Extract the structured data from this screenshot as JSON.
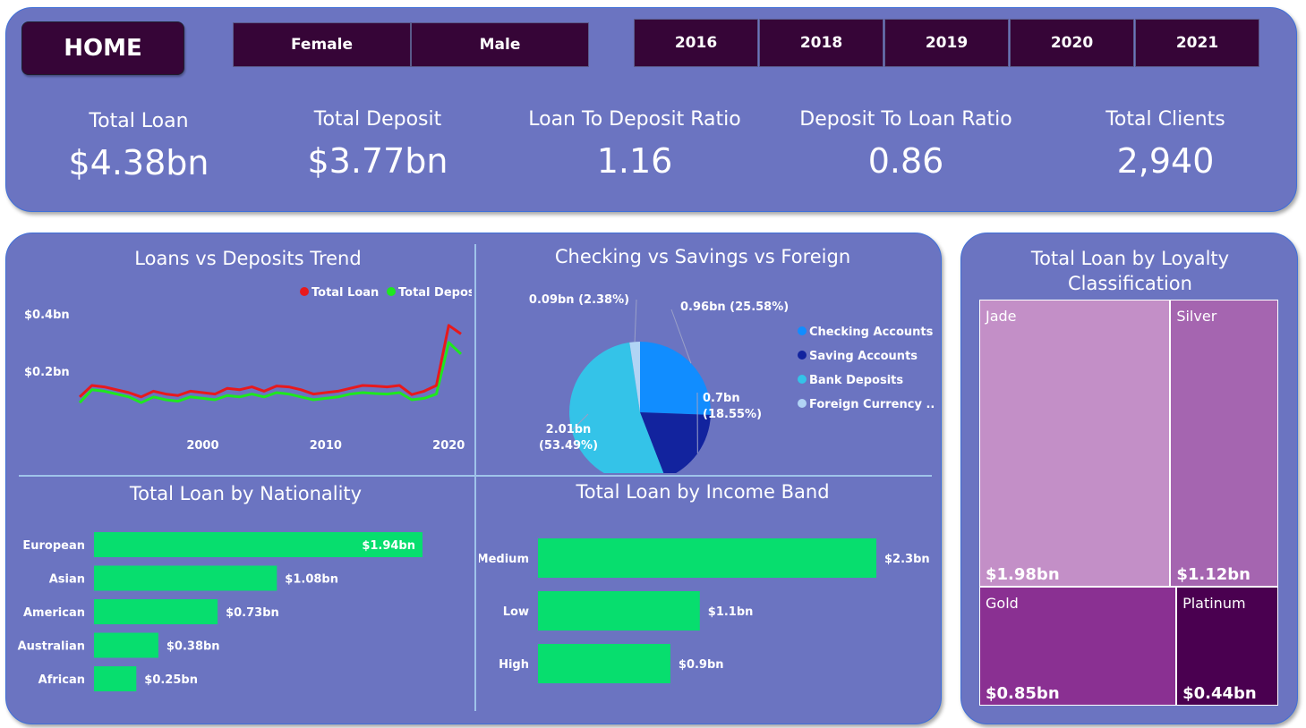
{
  "header": {
    "home_label": "HOME",
    "gender_slicer": [
      "Female",
      "Male"
    ],
    "year_slicer": [
      "2016",
      "2018",
      "2019",
      "2020",
      "2021"
    ]
  },
  "kpis": [
    {
      "label": "Total Loan",
      "value": "$4.38bn"
    },
    {
      "label": "Total Deposit",
      "value": "$3.77bn"
    },
    {
      "label": "Loan To Deposit Ratio",
      "value": "1.16"
    },
    {
      "label": "Deposit To Loan Ratio",
      "value": "0.86"
    },
    {
      "label": "Total Clients",
      "value": "2,940"
    }
  ],
  "colors": {
    "panel": "#6b74c1",
    "slicer": "#360537",
    "loan_line": "#e8191c",
    "deposit_line": "#1ee81e",
    "bar": "#07de6e"
  },
  "chart_data": [
    {
      "type": "line",
      "title": "Loans vs Deposits Trend",
      "x": [
        1990,
        1991,
        1992,
        1993,
        1994,
        1995,
        1996,
        1997,
        1998,
        1999,
        2000,
        2001,
        2002,
        2003,
        2004,
        2005,
        2006,
        2007,
        2008,
        2009,
        2010,
        2011,
        2012,
        2013,
        2014,
        2015,
        2016,
        2017,
        2018,
        2019,
        2020,
        2021
      ],
      "x_ticks": [
        "2000",
        "2010",
        "2020"
      ],
      "y_ticks": [
        "$0.2bn",
        "$0.4bn"
      ],
      "ylim": [
        0,
        0.5
      ],
      "legend": "top-right",
      "series": [
        {
          "name": "Total Loan",
          "color": "#e8191c",
          "values": [
            0.11,
            0.15,
            0.145,
            0.135,
            0.125,
            0.11,
            0.13,
            0.12,
            0.115,
            0.13,
            0.125,
            0.12,
            0.14,
            0.135,
            0.145,
            0.13,
            0.148,
            0.145,
            0.135,
            0.12,
            0.125,
            0.13,
            0.14,
            0.15,
            0.148,
            0.145,
            0.15,
            0.118,
            0.13,
            0.15,
            0.36,
            0.33
          ]
        },
        {
          "name": "Total Deposit",
          "color": "#1ee81e",
          "values": [
            0.09,
            0.135,
            0.13,
            0.12,
            0.11,
            0.09,
            0.11,
            0.1,
            0.095,
            0.11,
            0.105,
            0.1,
            0.115,
            0.11,
            0.12,
            0.11,
            0.125,
            0.12,
            0.11,
            0.1,
            0.105,
            0.11,
            0.12,
            0.125,
            0.122,
            0.12,
            0.125,
            0.1,
            0.105,
            0.12,
            0.3,
            0.26
          ]
        }
      ]
    },
    {
      "type": "pie",
      "title": "Checking vs Savings vs Foreign",
      "slices": [
        {
          "name": "Checking Accounts",
          "value": 0.96,
          "pct": 25.58,
          "color": "#118dff",
          "label": "0.96bn (25.58%)"
        },
        {
          "name": "Saving Accounts",
          "value": 0.7,
          "pct": 18.55,
          "color": "#12239e",
          "label": "0.7bn (18.55%)"
        },
        {
          "name": "Bank Deposits",
          "value": 2.01,
          "pct": 53.49,
          "color": "#34c3e8",
          "label": "2.01bn (53.49%)"
        },
        {
          "name": "Foreign Currency ...",
          "value": 0.09,
          "pct": 2.38,
          "color": "#b1d4f5",
          "label": "0.09bn (2.38%)"
        }
      ],
      "legend": "right"
    },
    {
      "type": "bar",
      "orientation": "horizontal",
      "title": "Total Loan by Nationality",
      "categories": [
        "European",
        "Asian",
        "American",
        "Australian",
        "African"
      ],
      "values": [
        1.94,
        1.08,
        0.73,
        0.38,
        0.25
      ],
      "labels": [
        "$1.94bn",
        "$1.08bn",
        "$0.73bn",
        "$0.38bn",
        "$0.25bn"
      ],
      "xlim": [
        0,
        1.94
      ]
    },
    {
      "type": "bar",
      "orientation": "horizontal",
      "title": "Total Loan by Income Band",
      "categories": [
        "Medium",
        "Low",
        "High"
      ],
      "values": [
        2.3,
        1.1,
        0.9
      ],
      "labels": [
        "$2.3bn",
        "$1.1bn",
        "$0.9bn"
      ],
      "xlim": [
        0,
        2.3
      ]
    },
    {
      "type": "treemap",
      "title": "Total Loan by Loyalty Classification",
      "items": [
        {
          "name": "Jade",
          "value": 1.98,
          "label": "$1.98bn",
          "color": "#c38fc7"
        },
        {
          "name": "Silver",
          "value": 1.12,
          "label": "$1.12bn",
          "color": "#a565b0"
        },
        {
          "name": "Gold",
          "value": 0.85,
          "label": "$0.85bn",
          "color": "#8a3092"
        },
        {
          "name": "Platinum",
          "value": 0.44,
          "label": "$0.44bn",
          "color": "#4a0050"
        }
      ]
    }
  ]
}
